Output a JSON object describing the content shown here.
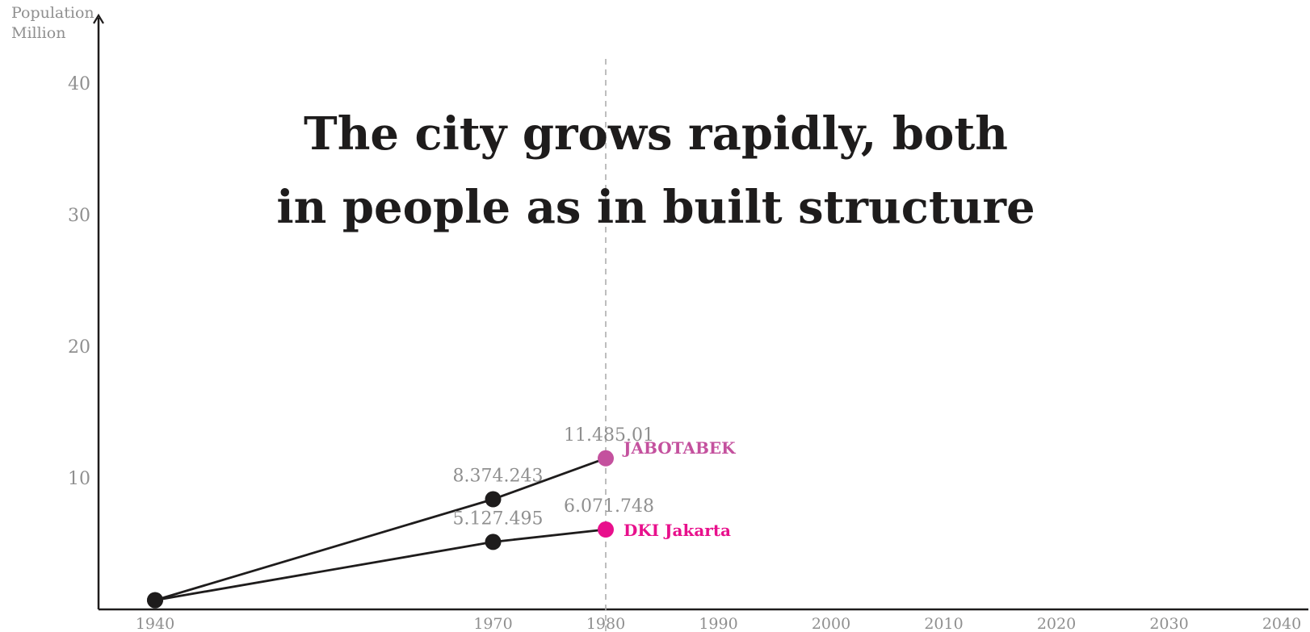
{
  "chart_data": {
    "type": "line",
    "title_lines": [
      "The city grows rapidly, both",
      "in people as in built structure"
    ],
    "ylabel_lines": [
      "Population",
      "Million"
    ],
    "xlabel": "",
    "xlim": [
      1935,
      2041
    ],
    "ylim": [
      0,
      45
    ],
    "x_ticks": [
      "1940",
      "1970",
      "1980",
      "1990",
      "2000",
      "2010",
      "2020",
      "2030",
      "2040"
    ],
    "y_ticks": [
      "10",
      "20",
      "30",
      "40"
    ],
    "reference_line_x": 1980,
    "series": [
      {
        "name": "JABOTABEK",
        "color": "#c4519e",
        "x": [
          1940,
          1970,
          1980
        ],
        "y": [
          0.7,
          8.374243,
          11.48501
        ],
        "labels": [
          "",
          "8.374.243",
          "11.485.01"
        ]
      },
      {
        "name": "DKI Jakarta",
        "color": "#e8108c",
        "x": [
          1940,
          1970,
          1980
        ],
        "y": [
          0.7,
          5.127495,
          6.071748
        ],
        "labels": [
          "",
          "5.127.495",
          "6.071.748"
        ]
      }
    ],
    "marker_color": "#1e1c1c",
    "axis_color": "#1e1c1c",
    "grid": false,
    "legend": "inline labels at series end"
  }
}
